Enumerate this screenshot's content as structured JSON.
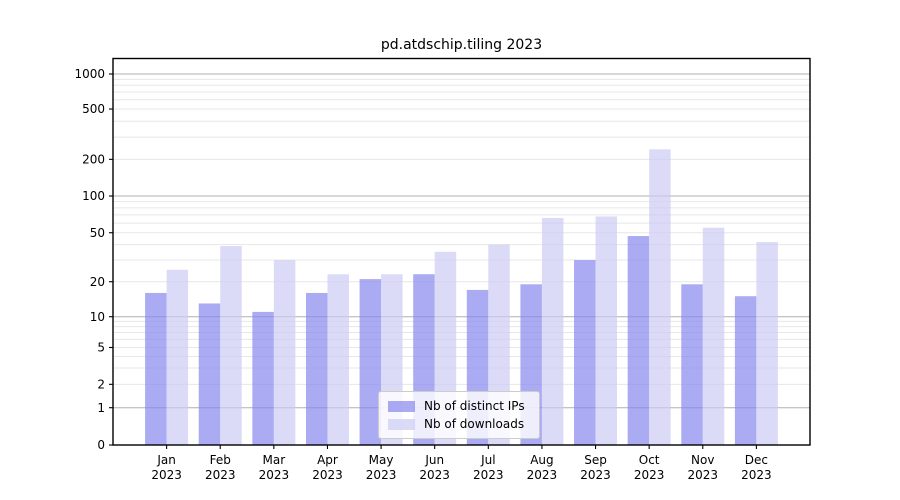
{
  "title": "pd.atdschip.tiling 2023",
  "chart_data": {
    "type": "bar",
    "title": "pd.atdschip.tiling 2023",
    "xlabel": "",
    "ylabel": "",
    "categories": [
      "Jan",
      "Feb",
      "Mar",
      "Apr",
      "May",
      "Jun",
      "Jul",
      "Aug",
      "Sep",
      "Oct",
      "Nov",
      "Dec"
    ],
    "year_label": "2023",
    "series": [
      {
        "name": "Nb of distinct IPs",
        "color": "#8888ee",
        "alpha": 0.7,
        "values": [
          16,
          13,
          11,
          16,
          21,
          23,
          17,
          19,
          30,
          47,
          19,
          15
        ]
      },
      {
        "name": "Nb of downloads",
        "color": "#ccccf5",
        "alpha": 0.7,
        "values": [
          25,
          39,
          30,
          23,
          23,
          35,
          40,
          66,
          68,
          240,
          55,
          42
        ]
      }
    ],
    "yticks": [
      0,
      1,
      2,
      5,
      10,
      20,
      50,
      100,
      200,
      500,
      1000
    ],
    "ylim": [
      0,
      1360
    ],
    "yscale": "symlog-like (linear 0-1, quasi-log above)",
    "grid": true,
    "minor_gridlines": true,
    "legend_position": "lower center",
    "scale_anchor_fractions": {
      "0": 0,
      "1": 0.0965,
      "2": 0.157,
      "5": 0.2523,
      "10": 0.3319,
      "20": 0.4225,
      "50": 0.5492,
      "100": 0.6442,
      "200": 0.7391,
      "500": 0.8693,
      "1000": 0.9599
    },
    "colors": {
      "spine": "#000000",
      "grid_major": "#b0b0b0",
      "grid_minor": "#e7e7e7",
      "legend_border": "#cccccc"
    }
  }
}
